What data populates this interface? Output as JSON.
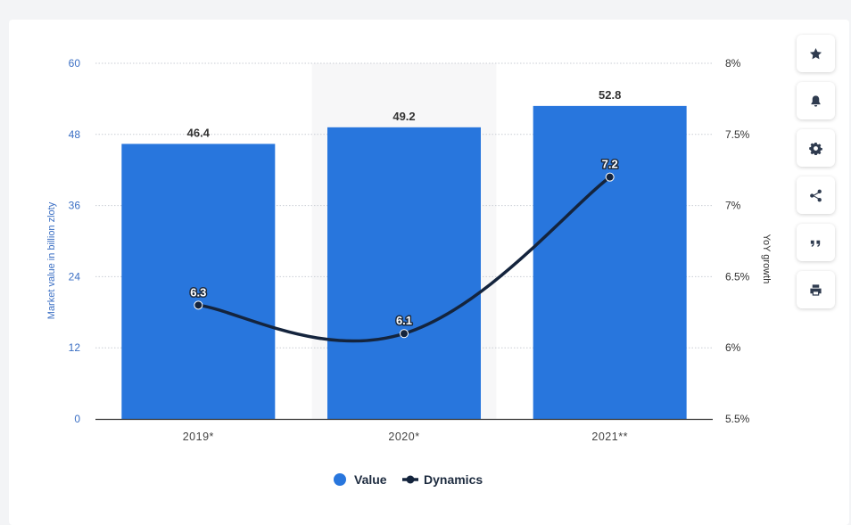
{
  "toolbar": {
    "icons": [
      "star-icon",
      "bell-icon",
      "gear-icon",
      "share-icon",
      "quote-icon",
      "print-icon"
    ]
  },
  "chart_data": {
    "type": "bar",
    "categories": [
      "2019*",
      "2020*",
      "2021**"
    ],
    "series": [
      {
        "name": "Value",
        "kind": "bar",
        "axis": "left",
        "values": [
          46.4,
          49.2,
          52.8
        ],
        "color": "#2876dd"
      },
      {
        "name": "Dynamics",
        "kind": "line",
        "axis": "right",
        "values": [
          6.3,
          6.1,
          7.2
        ],
        "color": "#14243d"
      }
    ],
    "bar_labels": [
      "46.4",
      "49.2",
      "52.8"
    ],
    "point_labels": [
      "6.3",
      "6.1",
      "7.2"
    ],
    "ylabel": "Market value in billion zloty",
    "y2label": "YoY growth",
    "ylim": [
      0,
      60
    ],
    "y2lim": [
      5.5,
      8
    ],
    "yticks": [
      "0",
      "12",
      "24",
      "36",
      "48",
      "60"
    ],
    "y2ticks": [
      "5.5%",
      "6%",
      "6.5%",
      "7%",
      "7.5%",
      "8%"
    ],
    "highlight_category": "2020*",
    "grid": true,
    "legend_position": "bottom-center"
  }
}
